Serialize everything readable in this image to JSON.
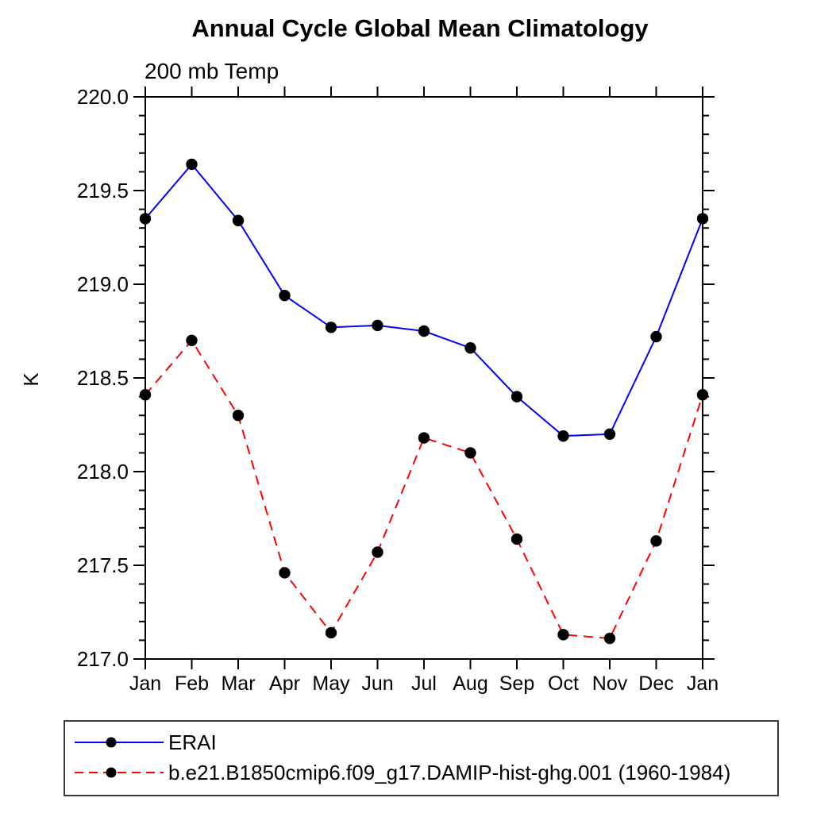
{
  "window": {
    "background": "#ffffff"
  },
  "chart_data": {
    "type": "line",
    "title": "Annual Cycle Global Mean Climatology",
    "subtitle": "200 mb Temp",
    "xlabel": "",
    "ylabel": "K",
    "x_tick_labels": [
      "Jan",
      "Feb",
      "Mar",
      "Apr",
      "May",
      "Jun",
      "Jul",
      "Aug",
      "Sep",
      "Oct",
      "Nov",
      "Dec",
      "Jan"
    ],
    "y_tick_labels": [
      "217.0",
      "217.5",
      "218.0",
      "218.5",
      "219.0",
      "219.5",
      "220.0"
    ],
    "ylim": [
      217.0,
      220.0
    ],
    "y_major_step": 0.5,
    "y_minor_step": 0.1,
    "grid": false,
    "frame": "box-with-outward-ticks",
    "legend_position": "bottom-left-box",
    "marker": "filled-circle",
    "marker_color": "#000000",
    "series": [
      {
        "name": "ERAI",
        "color": "#0000ff",
        "style": "solid",
        "values": [
          219.35,
          219.64,
          219.34,
          218.94,
          218.77,
          218.78,
          218.75,
          218.66,
          218.4,
          218.19,
          218.2,
          218.72,
          219.35
        ]
      },
      {
        "name": "b.e21.B1850cmip6.f09_g17.DAMIP-hist-ghg.001 (1960-1984)",
        "color": "#ff0000",
        "style": "dashed",
        "values": [
          218.41,
          218.7,
          218.3,
          217.46,
          217.14,
          217.57,
          218.18,
          218.1,
          217.64,
          217.13,
          217.11,
          217.63,
          218.41
        ]
      }
    ]
  }
}
